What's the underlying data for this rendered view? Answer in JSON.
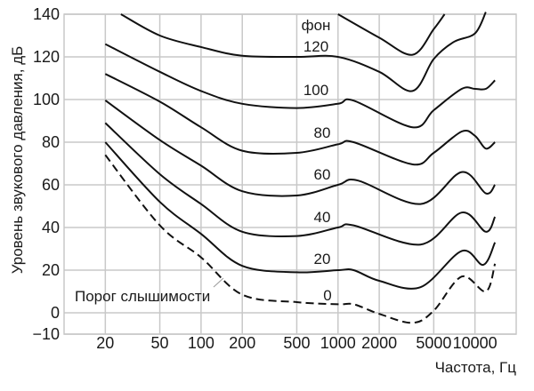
{
  "chart_data": {
    "type": "line",
    "xlabel": "Частота, Гц",
    "ylabel": "Уровень звукового давления, дБ",
    "x_scale": "log",
    "xlim": [
      10,
      20000
    ],
    "ylim": [
      -10,
      140
    ],
    "x_ticks": [
      20,
      50,
      100,
      200,
      500,
      1000,
      2000,
      5000,
      10000
    ],
    "x_tick_labels": [
      "20",
      "50",
      "100",
      "200",
      "500",
      "1000",
      "2000",
      "5000",
      "10000"
    ],
    "y_ticks": [
      -10,
      0,
      20,
      40,
      60,
      80,
      100,
      120,
      140
    ],
    "y_tick_labels": [
      "−10",
      "0",
      "20",
      "40",
      "60",
      "80",
      "100",
      "120",
      "140"
    ],
    "grid": true,
    "unit_label": "фон",
    "threshold_label": "Порог слышимости",
    "line_color": "#111111",
    "grid_color": "#c8c8c8",
    "series": [
      {
        "name": "0",
        "dashed": true,
        "x": [
          20,
          50,
          100,
          200,
          500,
          1000,
          1300,
          2000,
          3500,
          5000,
          8000,
          12000,
          14000
        ],
        "y": [
          74,
          41,
          26,
          8.5,
          5,
          4,
          4,
          -0.5,
          -4.7,
          1,
          17,
          10,
          23
        ]
      },
      {
        "name": "20",
        "x": [
          20,
          50,
          100,
          200,
          500,
          1000,
          1300,
          2000,
          4000,
          8000,
          11500,
          14000
        ],
        "y": [
          80,
          52,
          37,
          22,
          19,
          20,
          20,
          15,
          12,
          29,
          22.5,
          33
        ]
      },
      {
        "name": "40",
        "x": [
          20,
          50,
          100,
          200,
          500,
          1000,
          1300,
          4000,
          8000,
          12000,
          14000
        ],
        "y": [
          89,
          65,
          51,
          38,
          36,
          40,
          41,
          32,
          47,
          38,
          45
        ]
      },
      {
        "name": "60",
        "x": [
          20,
          50,
          100,
          200,
          500,
          1000,
          1400,
          4000,
          8000,
          12000,
          14000
        ],
        "y": [
          99.6,
          81,
          69,
          57,
          55,
          60,
          62,
          51,
          66,
          56,
          60
        ]
      },
      {
        "name": "80",
        "x": [
          20,
          50,
          100,
          200,
          500,
          1000,
          1300,
          3500,
          5000,
          8000,
          10000,
          12000,
          14000
        ],
        "y": [
          112,
          99,
          87,
          76,
          75,
          79,
          80,
          69.6,
          75,
          85,
          83,
          77,
          80
        ]
      },
      {
        "name": "100",
        "x": [
          20,
          50,
          100,
          200,
          500,
          1000,
          1300,
          3500,
          5000,
          8000,
          10000,
          12000,
          14000
        ],
        "y": [
          126,
          113,
          104,
          98,
          96,
          98,
          99.5,
          87,
          95,
          105,
          105,
          105,
          109
        ]
      },
      {
        "name": "120",
        "x": [
          26,
          50,
          100,
          200,
          500,
          1000,
          2000,
          3500,
          5000,
          7000,
          10000,
          12000
        ],
        "y": [
          140,
          130,
          124.6,
          120.5,
          120,
          120,
          113,
          104,
          119,
          127,
          131,
          141
        ]
      },
      {
        "name": "",
        "x": [
          1000,
          2000,
          3500,
          5000,
          6000
        ],
        "y": [
          140,
          129,
          121,
          133,
          140
        ]
      }
    ]
  }
}
